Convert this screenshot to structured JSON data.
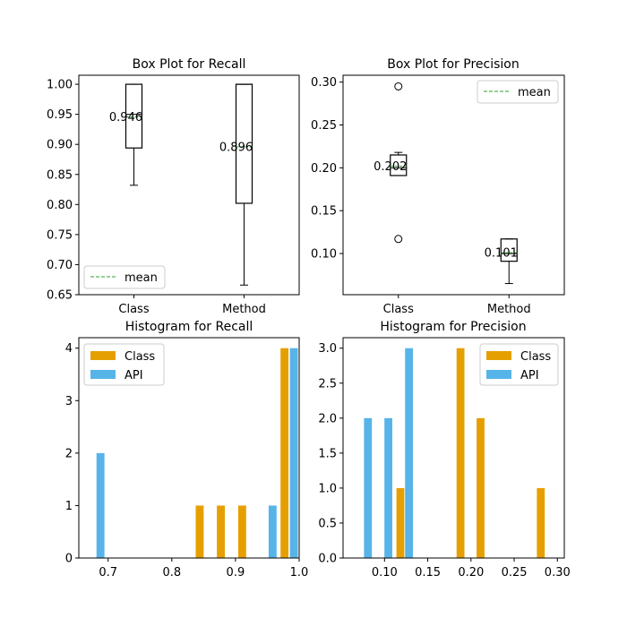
{
  "chart_data": [
    {
      "type": "box",
      "title": "Box Plot for Recall",
      "xlabel": "",
      "ylabel": "",
      "categories": [
        "Class",
        "Method"
      ],
      "ylim": [
        0.65,
        1.015
      ],
      "yticks": [
        0.65,
        0.7,
        0.75,
        0.8,
        0.85,
        0.9,
        0.95,
        1.0
      ],
      "ytick_labels": [
        "0.65",
        "0.70",
        "0.75",
        "0.80",
        "0.85",
        "0.90",
        "0.95",
        "1.00"
      ],
      "boxes": [
        {
          "category": "Class",
          "whisker_low": 0.832,
          "q1": 0.894,
          "median": 0.95,
          "q3": 1.0,
          "whisker_high": 1.0,
          "mean": 0.946,
          "mean_label": "0.946",
          "outliers": []
        },
        {
          "category": "Method",
          "whisker_low": 0.666,
          "q1": 0.802,
          "median": 1.0,
          "q3": 1.0,
          "whisker_high": 1.0,
          "mean": 0.896,
          "mean_label": "0.896",
          "outliers": []
        }
      ],
      "legend": {
        "entries": [
          "mean"
        ],
        "position": "lower-left"
      },
      "mean_color": "#2ca02c"
    },
    {
      "type": "box",
      "title": "Box Plot for Precision",
      "xlabel": "",
      "ylabel": "",
      "categories": [
        "Class",
        "Method"
      ],
      "ylim": [
        0.052,
        0.308
      ],
      "yticks": [
        0.1,
        0.15,
        0.2,
        0.25,
        0.3
      ],
      "ytick_labels": [
        "0.10",
        "0.15",
        "0.20",
        "0.25",
        "0.30"
      ],
      "boxes": [
        {
          "category": "Class",
          "whisker_low": 0.191,
          "q1": 0.191,
          "median": 0.2,
          "q3": 0.215,
          "whisker_high": 0.218,
          "mean": 0.202,
          "mean_label": "0.202",
          "outliers": [
            0.117,
            0.295
          ]
        },
        {
          "category": "Method",
          "whisker_low": 0.065,
          "q1": 0.091,
          "median": 0.1,
          "q3": 0.117,
          "whisker_high": 0.117,
          "mean": 0.101,
          "mean_label": "0.101",
          "outliers": []
        }
      ],
      "legend": {
        "entries": [
          "mean"
        ],
        "position": "top-right"
      },
      "mean_color": "#2ca02c"
    },
    {
      "type": "bar",
      "title": "Histogram for Recall",
      "xlabel": "",
      "ylabel": "",
      "xlim": [
        0.654,
        1.0
      ],
      "ylim": [
        0,
        4.2
      ],
      "xticks": [
        0.7,
        0.8,
        0.9,
        1.0
      ],
      "xtick_labels": [
        "0.7",
        "0.8",
        "0.9",
        "1.0"
      ],
      "yticks": [
        0,
        1,
        2,
        3,
        4
      ],
      "ytick_labels": [
        "0",
        "1",
        "2",
        "3",
        "4"
      ],
      "bar_width": 0.0125,
      "series": [
        {
          "name": "Class",
          "color": "#E69F00",
          "x": [
            0.8438,
            0.877,
            0.9105,
            0.977
          ],
          "values": [
            1,
            1,
            1,
            4
          ]
        },
        {
          "name": "API",
          "color": "#56B4E9",
          "x": [
            0.688,
            0.9583,
            0.9917
          ],
          "values": [
            2,
            1,
            4
          ]
        }
      ],
      "legend": {
        "entries": [
          "Class",
          "API"
        ],
        "position": "top-left"
      }
    },
    {
      "type": "bar",
      "title": "Histogram for Precision",
      "xlabel": "",
      "ylabel": "",
      "xlim": [
        0.052,
        0.308
      ],
      "ylim": [
        0,
        3.15
      ],
      "xticks": [
        0.1,
        0.15,
        0.2,
        0.25,
        0.3
      ],
      "xtick_labels": [
        "0.10",
        "0.15",
        "0.20",
        "0.25",
        "0.30"
      ],
      "yticks": [
        0.0,
        0.5,
        1.0,
        1.5,
        2.0,
        2.5,
        3.0
      ],
      "ytick_labels": [
        "0.0",
        "0.5",
        "1.0",
        "1.5",
        "2.0",
        "2.5",
        "3.0"
      ],
      "bar_width": 0.0091,
      "series": [
        {
          "name": "Class",
          "color": "#E69F00",
          "x": [
            0.1183,
            0.1879,
            0.2111,
            0.2808
          ],
          "values": [
            1,
            3,
            2,
            1
          ]
        },
        {
          "name": "API",
          "color": "#56B4E9",
          "x": [
            0.0808,
            0.1044,
            0.1283
          ],
          "values": [
            2,
            2,
            3
          ]
        }
      ],
      "legend": {
        "entries": [
          "Class",
          "API"
        ],
        "position": "top-right"
      }
    }
  ]
}
